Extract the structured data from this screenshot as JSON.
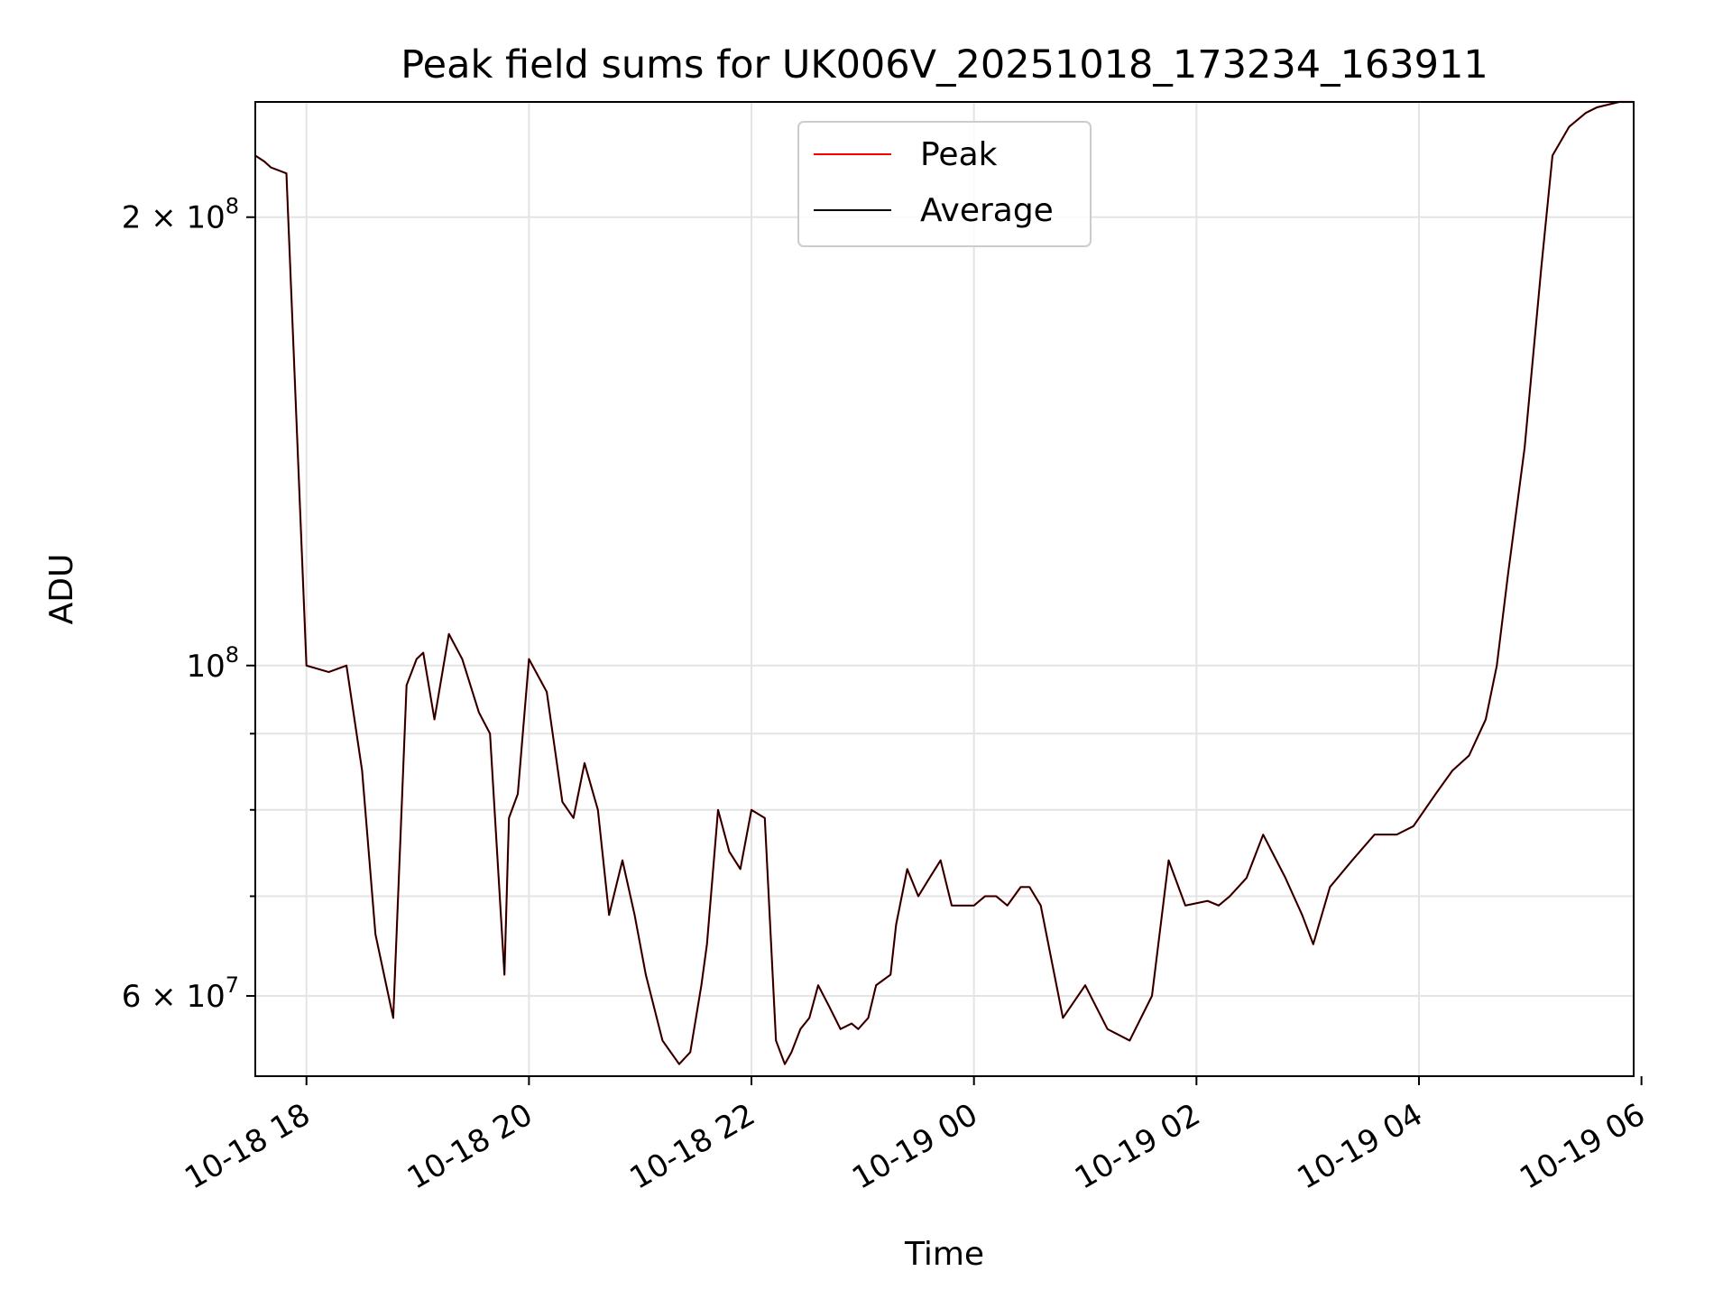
{
  "chart_data": {
    "type": "line",
    "title": "Peak field sums for UK006V_20251018_173234_163911",
    "xlabel": "Time",
    "ylabel": "ADU",
    "yscale": "log",
    "grid": true,
    "legend_placement": "upper-center",
    "xlim_hours": [
      17.54,
      29.93
    ],
    "ylim": [
      53000000,
      239000000
    ],
    "x_tick_values": [
      18,
      20,
      22,
      24,
      26,
      28,
      30
    ],
    "x_tick_labels": [
      "10-18 18",
      "10-18 20",
      "10-18 22",
      "10-19 00",
      "10-19 02",
      "10-19 04",
      "10-19 06"
    ],
    "y_major_ticks": [
      {
        "value": 60000000,
        "mantissa": "6",
        "exponent": "7"
      },
      {
        "value": 100000000,
        "mantissa": "",
        "exponent": "8"
      },
      {
        "value": 200000000,
        "mantissa": "2",
        "exponent": "8"
      }
    ],
    "y_minor_ticks": [
      70000000,
      80000000,
      90000000
    ],
    "series": [
      {
        "name": "Peak",
        "color": "#ff0000",
        "x_hours": [
          17.54,
          17.62,
          17.68,
          17.75,
          17.82,
          18.0,
          18.2,
          18.36,
          18.5,
          18.62,
          18.78,
          18.9,
          18.99,
          19.05,
          19.15,
          19.28,
          19.4,
          19.55,
          19.65,
          19.78,
          19.82,
          19.9,
          20.0,
          20.16,
          20.3,
          20.4,
          20.5,
          20.62,
          20.72,
          20.84,
          20.95,
          21.05,
          21.2,
          21.35,
          21.45,
          21.55,
          21.6,
          21.7,
          21.8,
          21.9,
          22.0,
          22.12,
          22.22,
          22.3,
          22.36,
          22.44,
          22.52,
          22.6,
          22.7,
          22.8,
          22.9,
          22.96,
          23.05,
          23.12,
          23.25,
          23.3,
          23.4,
          23.5,
          23.6,
          23.7,
          23.8,
          23.88,
          23.91,
          24.0,
          24.1,
          24.2,
          24.3,
          24.42,
          24.5,
          24.6,
          24.8,
          25.0,
          25.2,
          25.4,
          25.6,
          25.75,
          25.9,
          26.1,
          26.2,
          26.3,
          26.45,
          26.6,
          26.8,
          26.95,
          27.05,
          27.2,
          27.4,
          27.6,
          27.8,
          27.95,
          28.15,
          28.3,
          28.45,
          28.6,
          28.7,
          28.8,
          28.95,
          29.1,
          29.2,
          29.35,
          29.5,
          29.6,
          29.7,
          29.8,
          29.9,
          29.93
        ],
        "values": [
          220000000,
          218000000,
          216000000,
          215000000,
          214000000,
          100000000,
          99000000,
          100000000,
          85000000,
          66000000,
          58000000,
          97000000,
          101000000,
          102000000,
          92000000,
          105000000,
          101000000,
          93000000,
          90000000,
          62000000,
          79000000,
          82000000,
          101000000,
          96000000,
          81000000,
          79000000,
          86000000,
          80000000,
          68000000,
          74000000,
          68000000,
          62000000,
          56000000,
          54000000,
          55000000,
          61000000,
          65000000,
          80000000,
          75000000,
          73000000,
          80000000,
          79000000,
          56000000,
          54000000,
          55000000,
          57000000,
          58000000,
          61000000,
          59000000,
          57000000,
          57500000,
          57000000,
          58000000,
          61000000,
          62000000,
          67000000,
          73000000,
          70000000,
          72000000,
          74000000,
          69000000,
          69000000,
          69000000,
          69000000,
          70000000,
          70000000,
          69000000,
          71000000,
          71000000,
          69000000,
          58000000,
          61000000,
          57000000,
          56000000,
          60000000,
          74000000,
          69000000,
          69500000,
          69000000,
          70000000,
          72000000,
          77000000,
          72000000,
          68000000,
          65000000,
          71000000,
          74000000,
          77000000,
          77000000,
          78000000,
          82000000,
          85000000,
          87000000,
          92000000,
          100000000,
          115000000,
          140000000,
          185000000,
          220000000,
          230000000,
          235000000,
          237000000,
          238000000,
          239000000,
          239000000,
          239000000
        ]
      },
      {
        "name": "Average",
        "color": "#000000",
        "x_hours": [
          17.54,
          17.62,
          17.68,
          17.75,
          17.82,
          18.0,
          18.2,
          18.36,
          18.5,
          18.62,
          18.78,
          18.9,
          18.99,
          19.05,
          19.15,
          19.28,
          19.4,
          19.55,
          19.65,
          19.78,
          19.82,
          19.9,
          20.0,
          20.16,
          20.3,
          20.4,
          20.5,
          20.62,
          20.72,
          20.84,
          20.95,
          21.05,
          21.2,
          21.35,
          21.45,
          21.55,
          21.6,
          21.7,
          21.8,
          21.9,
          22.0,
          22.12,
          22.22,
          22.3,
          22.36,
          22.44,
          22.52,
          22.6,
          22.7,
          22.8,
          22.9,
          22.96,
          23.05,
          23.12,
          23.25,
          23.3,
          23.4,
          23.5,
          23.6,
          23.7,
          23.8,
          23.88,
          23.91,
          24.0,
          24.1,
          24.2,
          24.3,
          24.42,
          24.5,
          24.6,
          24.8,
          25.0,
          25.2,
          25.4,
          25.6,
          25.75,
          25.9,
          26.1,
          26.2,
          26.3,
          26.45,
          26.6,
          26.8,
          26.95,
          27.05,
          27.2,
          27.4,
          27.6,
          27.8,
          27.95,
          28.15,
          28.3,
          28.45,
          28.6,
          28.7,
          28.8,
          28.95,
          29.1,
          29.2,
          29.35,
          29.5,
          29.6,
          29.7,
          29.8,
          29.9,
          29.93
        ],
        "values": [
          220000000,
          218000000,
          216000000,
          215000000,
          214000000,
          100000000,
          99000000,
          100000000,
          85000000,
          66000000,
          58000000,
          97000000,
          101000000,
          102000000,
          92000000,
          105000000,
          101000000,
          93000000,
          90000000,
          62000000,
          79000000,
          82000000,
          101000000,
          96000000,
          81000000,
          79000000,
          86000000,
          80000000,
          68000000,
          74000000,
          68000000,
          62000000,
          56000000,
          54000000,
          55000000,
          61000000,
          65000000,
          80000000,
          75000000,
          73000000,
          80000000,
          79000000,
          56000000,
          54000000,
          55000000,
          57000000,
          58000000,
          61000000,
          59000000,
          57000000,
          57500000,
          57000000,
          58000000,
          61000000,
          62000000,
          67000000,
          73000000,
          70000000,
          72000000,
          74000000,
          69000000,
          69000000,
          69000000,
          69000000,
          70000000,
          70000000,
          69000000,
          71000000,
          71000000,
          69000000,
          58000000,
          61000000,
          57000000,
          56000000,
          60000000,
          74000000,
          69000000,
          69500000,
          69000000,
          70000000,
          72000000,
          77000000,
          72000000,
          68000000,
          65000000,
          71000000,
          74000000,
          77000000,
          77000000,
          78000000,
          82000000,
          85000000,
          87000000,
          92000000,
          100000000,
          115000000,
          140000000,
          185000000,
          220000000,
          230000000,
          235000000,
          237000000,
          238000000,
          239000000,
          239000000,
          239000000
        ]
      }
    ]
  }
}
